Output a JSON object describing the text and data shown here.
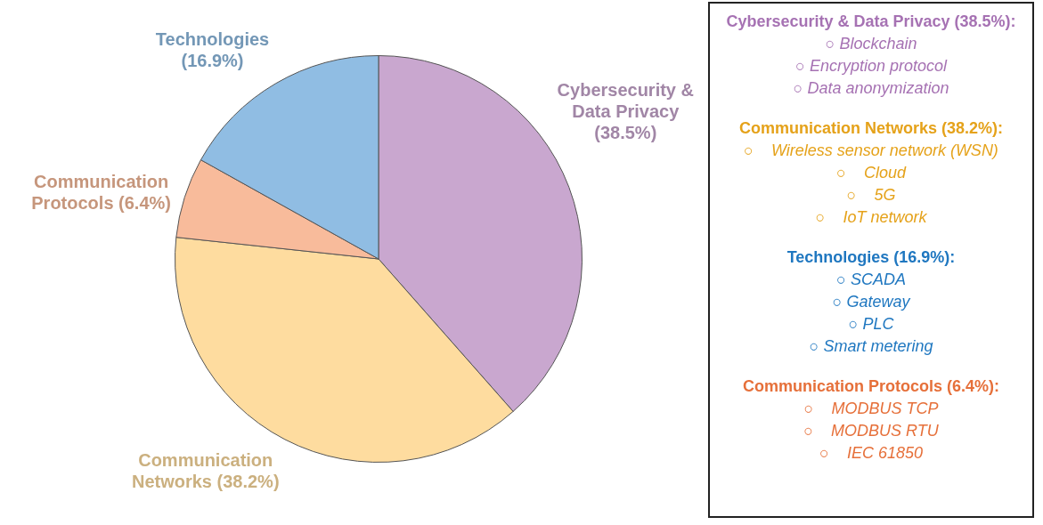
{
  "chart_data": [
    {
      "type": "pie",
      "categories": [
        "Cybersecurity & Data Privacy",
        "Communication Networks",
        "Communication Protocols",
        "Technologies"
      ],
      "values": [
        38.5,
        38.2,
        6.4,
        16.9
      ],
      "value_labels": [
        "(38.5%)",
        "(38.2%)",
        "(6.4%)",
        "(16.9%)"
      ],
      "colors": [
        "#c9a7cf",
        "#fedc9f",
        "#f8bb9b",
        "#90bde3"
      ],
      "legend": false
    },
    {
      "type": "other",
      "title": "Cybersecurity & Data Privacy (38.5%):",
      "color": "#a672b3",
      "annotations": [
        "○ Blockchain",
        "○ Encryption protocol",
        "○ Data anonymization"
      ]
    },
    {
      "type": "other",
      "title": "Communication Networks (38.2%):",
      "color": "#e5a21a",
      "annotations": [
        "○    Wireless sensor network (WSN)",
        "○    Cloud",
        "○    5G",
        "○    IoT network"
      ]
    },
    {
      "type": "other",
      "title": "Technologies (16.9%):",
      "color": "#1f77c0",
      "annotations": [
        "○ SCADA",
        "○ Gateway",
        "○ PLC",
        "○ Smart metering"
      ]
    },
    {
      "type": "other",
      "title": "Communication Protocols (6.4%):",
      "color": "#e6703a",
      "annotations": [
        "○    MODBUS TCP",
        "○    MODBUS RTU",
        "○    IEC 61850"
      ]
    }
  ]
}
